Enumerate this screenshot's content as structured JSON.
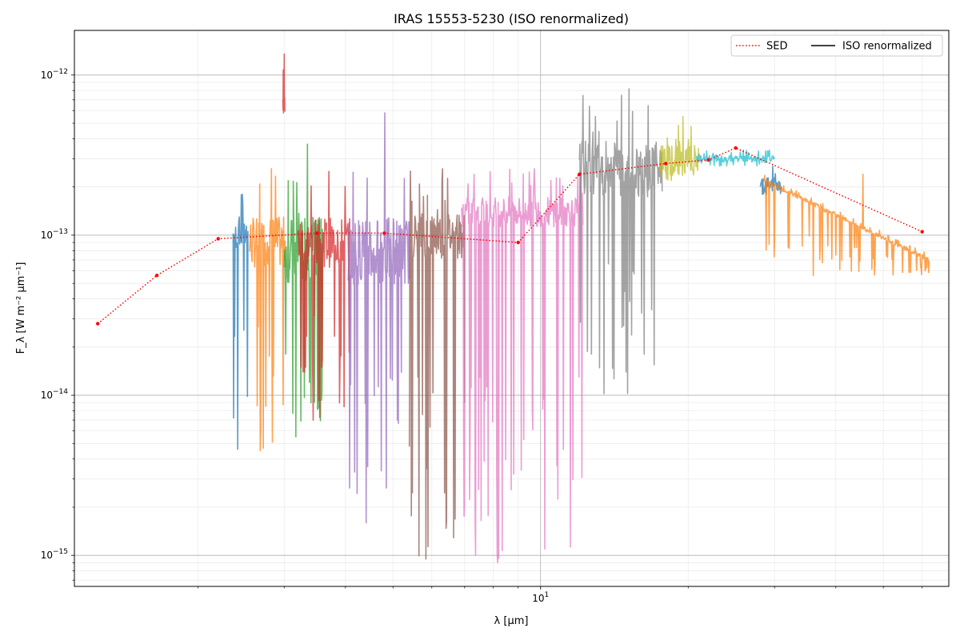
{
  "chart_data": {
    "type": "line",
    "title": "IRAS 15553-5230 (ISO renormalized)",
    "xlabel": "λ [μm]",
    "ylabel": "F_λ [W m⁻² μm⁻¹]",
    "xscale": "log",
    "yscale": "log",
    "xlim": [
      1.12,
      68
    ],
    "ylim": [
      6.4e-16,
      1.9e-12
    ],
    "grid": true,
    "legend": {
      "placement": "top-right",
      "entries": [
        {
          "label": "SED",
          "style": "dotted",
          "color": "#ff0000"
        },
        {
          "label": "ISO renormalized",
          "style": "solid",
          "color": "#000000"
        }
      ]
    },
    "x_ticks": [
      {
        "value": 10,
        "label": "10^1"
      }
    ],
    "y_ticks": [
      {
        "value": 1e-15,
        "label": "10^-15"
      },
      {
        "value": 1e-14,
        "label": "10^-14"
      },
      {
        "value": 1e-13,
        "label": "10^-13"
      },
      {
        "value": 1e-12,
        "label": "10^-12"
      }
    ],
    "sed": {
      "name": "SED",
      "color": "#ff0000",
      "points": [
        [
          1.25,
          2.8e-14
        ],
        [
          1.65,
          5.6e-14
        ],
        [
          2.2,
          9.5e-14
        ],
        [
          3.5,
          1.03e-13
        ],
        [
          4.8,
          1.03e-13
        ],
        [
          9.0,
          9e-14
        ],
        [
          12.0,
          2.4e-13
        ],
        [
          18.0,
          2.8e-13
        ],
        [
          22.0,
          2.95e-13
        ],
        [
          25.0,
          3.5e-13
        ],
        [
          60.0,
          1.05e-13
        ]
      ]
    },
    "iso_segments": [
      {
        "color": "#1f77b4",
        "x_range": [
          2.36,
          2.53
        ],
        "y_base": 1e-13,
        "y_min": 4.6e-15,
        "y_max": 1.8e-13
      },
      {
        "color": "#ff7f0e",
        "x_range": [
          2.55,
          3.02
        ],
        "y_base": 9e-14,
        "y_min": 4.5e-15,
        "y_max": 2.6e-13
      },
      {
        "color": "#d62728",
        "x_range": [
          2.98,
          3.01
        ],
        "y_base": 7e-13,
        "y_min": 5.8e-13,
        "y_max": 1.35e-12
      },
      {
        "color": "#2ca02c",
        "x_range": [
          3.0,
          3.6
        ],
        "y_base": 8e-14,
        "y_min": 5.5e-15,
        "y_max": 3.7e-13
      },
      {
        "color": "#d62728",
        "x_range": [
          3.2,
          4.08
        ],
        "y_base": 9e-14,
        "y_min": 7e-15,
        "y_max": 2.5e-13
      },
      {
        "color": "#9467bd",
        "x_range": [
          4.05,
          5.4
        ],
        "y_base": 8e-14,
        "y_min": 1.6e-15,
        "y_max": 5.8e-13
      },
      {
        "color": "#8c564b",
        "x_range": [
          5.4,
          7.0
        ],
        "y_base": 1e-13,
        "y_min": 9.5e-16,
        "y_max": 2.6e-13
      },
      {
        "color": "#e377c2",
        "x_range": [
          6.9,
          12.2
        ],
        "y_base": 1.4e-13,
        "y_min": 9e-16,
        "y_max": 2.6e-13
      },
      {
        "color": "#7f7f7f",
        "x_range": [
          12.0,
          17.7
        ],
        "y_base": 2.6e-13,
        "y_min": 1.02e-14,
        "y_max": 8.2e-13
      },
      {
        "color": "#bcbd22",
        "x_range": [
          17.5,
          21.0
        ],
        "y_base": 2.9e-13,
        "y_min": 2.2e-13,
        "y_max": 5.5e-13
      },
      {
        "color": "#17becf",
        "x_range": [
          20.8,
          30.0
        ],
        "y_base": 3e-13,
        "y_min": 2.7e-13,
        "y_max": 3.4e-13
      },
      {
        "color": "#1f77b4",
        "x_range": [
          28.0,
          31.0
        ],
        "y_base": 2.1e-13,
        "y_min": 1.8e-13,
        "y_max": 2.7e-13
      },
      {
        "color": "#ff7f0e",
        "x_range": [
          28.5,
          62.0
        ],
        "y_base": 2.2e-13,
        "y_end": 7e-14,
        "y_min": 5.6e-14,
        "y_max": 2.4e-13
      }
    ]
  }
}
